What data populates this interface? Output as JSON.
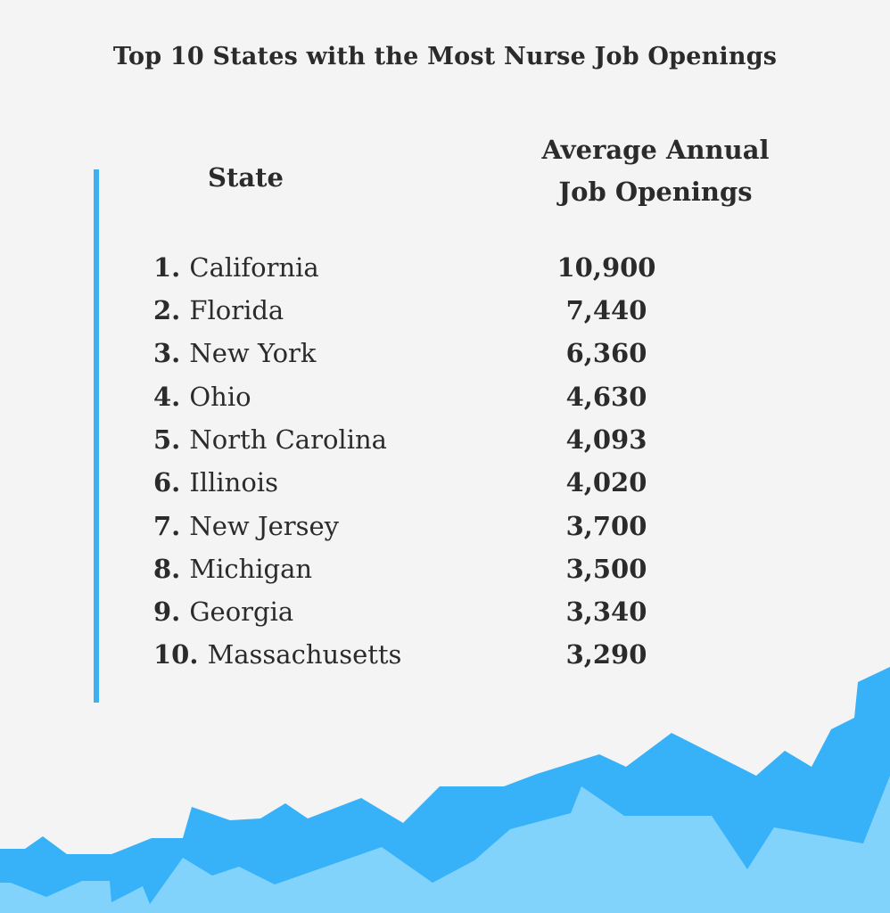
{
  "title": "Top 10 States with the Most Nurse Job Openings",
  "colors": {
    "accent": "#3bb0f2",
    "wave_dark": "#37b1f8",
    "wave_light": "#82d3fc",
    "background": "#f4f4f4",
    "text": "#2b2b2b"
  },
  "headers": {
    "state": "State",
    "openings_line1": "Average Annual",
    "openings_line2": "Job Openings"
  },
  "chart_data": {
    "type": "table",
    "title": "Top 10 States with the Most Nurse Job Openings",
    "columns": [
      "State",
      "Average Annual Job Openings"
    ],
    "rows": [
      {
        "rank": "1.",
        "state": "California",
        "value": "10,900"
      },
      {
        "rank": "2.",
        "state": "Florida",
        "value": "7,440"
      },
      {
        "rank": "3.",
        "state": "New York",
        "value": "6,360"
      },
      {
        "rank": "4.",
        "state": "Ohio",
        "value": "4,630"
      },
      {
        "rank": "5.",
        "state": "North Carolina",
        "value": "4,093"
      },
      {
        "rank": "6.",
        "state": "Illinois",
        "value": "4,020"
      },
      {
        "rank": "7.",
        "state": "New Jersey",
        "value": "3,700"
      },
      {
        "rank": "8.",
        "state": "Michigan",
        "value": "3,500"
      },
      {
        "rank": "9.",
        "state": "Georgia",
        "value": "3,340"
      },
      {
        "rank": "10.",
        "state": "Massachusetts",
        "value": "3,290"
      }
    ]
  }
}
